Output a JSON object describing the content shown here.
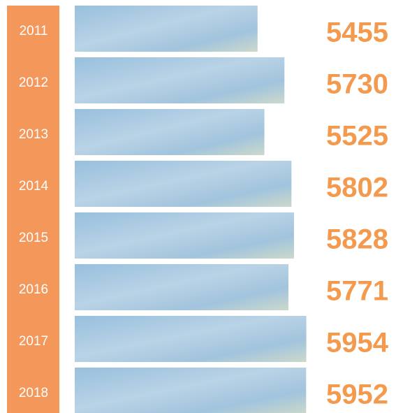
{
  "chart_data": {
    "type": "bar",
    "orientation": "horizontal",
    "categories": [
      "2011",
      "2012",
      "2013",
      "2014",
      "2015",
      "2016",
      "2017",
      "2018"
    ],
    "values": [
      5455,
      5730,
      5525,
      5802,
      5828,
      5771,
      5954,
      5952
    ],
    "xlim": [
      3584,
      6000
    ],
    "color": "#8db6d8",
    "label_color": "#f39a4e",
    "band_color": "#f4975a"
  }
}
